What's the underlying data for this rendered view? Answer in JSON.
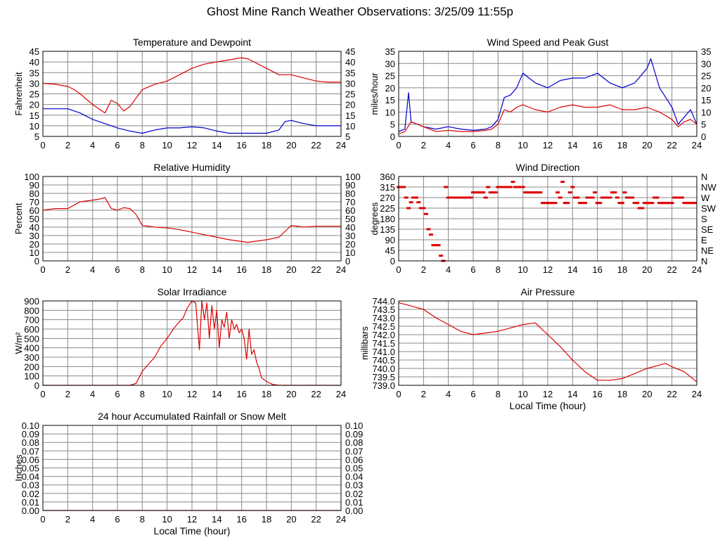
{
  "page_title": "Ghost Mine Ranch Weather Observations: 3/25/09 11:55p",
  "colors": {
    "red": "#dd0000",
    "blue": "#0000cc",
    "grid": "#888888",
    "frame": "#000000"
  },
  "chart_data": [
    {
      "id": "temp",
      "type": "line",
      "title": "Temperature and Dewpoint",
      "xlabel": "",
      "ylabel": "Fahrenheit",
      "xlim": [
        0,
        24
      ],
      "ylim": [
        5,
        45
      ],
      "xticks": [
        "0",
        "2",
        "4",
        "6",
        "8",
        "10",
        "12",
        "14",
        "16",
        "18",
        "20",
        "22",
        "24"
      ],
      "yticks": [
        "5",
        "10",
        "15",
        "20",
        "25",
        "30",
        "35",
        "40",
        "45"
      ],
      "right_ticks": [
        "5",
        "10",
        "15",
        "20",
        "25",
        "30",
        "35",
        "40",
        "45"
      ],
      "series": [
        {
          "color": "red",
          "x": [
            0,
            1,
            2,
            2.5,
            3,
            4,
            4.5,
            5,
            5.5,
            6,
            6.5,
            7,
            7.5,
            8,
            9,
            10,
            11,
            12,
            13,
            14,
            15,
            16,
            16.5,
            17,
            18,
            19,
            20,
            21,
            22,
            23,
            24
          ],
          "y": [
            30,
            29.5,
            28.5,
            27,
            25,
            20,
            18,
            16,
            22,
            20.5,
            17,
            19,
            23,
            27,
            29.5,
            31,
            34,
            37,
            39,
            40,
            41,
            42,
            41.5,
            40,
            37,
            34,
            34,
            32.5,
            31,
            30.5,
            30.5
          ]
        },
        {
          "color": "blue",
          "x": [
            0,
            1,
            2,
            3,
            4,
            5,
            6,
            7,
            8,
            9,
            10,
            11,
            12,
            13,
            14,
            15,
            16,
            17,
            18,
            19,
            19.5,
            20,
            21,
            22,
            23,
            24
          ],
          "y": [
            18,
            18,
            18,
            16,
            13,
            11,
            9,
            7.5,
            6.5,
            8,
            9,
            9,
            9.5,
            9,
            7.5,
            6.5,
            6.5,
            6.5,
            6.5,
            8,
            12,
            12.5,
            11,
            10,
            10,
            10
          ]
        }
      ]
    },
    {
      "id": "wind",
      "type": "line",
      "title": "Wind Speed and Peak Gust",
      "xlabel": "",
      "ylabel": "miles/hour",
      "xlim": [
        0,
        24
      ],
      "ylim": [
        0,
        35
      ],
      "xticks": [
        "0",
        "2",
        "4",
        "6",
        "8",
        "10",
        "12",
        "14",
        "16",
        "18",
        "20",
        "22",
        "24"
      ],
      "yticks": [
        "0",
        "5",
        "10",
        "15",
        "20",
        "25",
        "30",
        "35"
      ],
      "right_ticks": [
        "0",
        "5",
        "10",
        "15",
        "20",
        "25",
        "30",
        "35"
      ],
      "series": [
        {
          "color": "blue",
          "x": [
            0,
            0.5,
            0.8,
            1,
            1.5,
            2,
            3,
            4,
            5,
            6,
            7,
            7.5,
            8,
            8.5,
            9,
            9.5,
            10,
            11,
            12,
            13,
            14,
            15,
            16,
            17,
            18,
            19,
            20,
            20.3,
            21,
            22,
            22.5,
            23,
            23.5,
            24
          ],
          "y": [
            2,
            3,
            18,
            6,
            5,
            4,
            3,
            4,
            3,
            2.5,
            3,
            4,
            7,
            16,
            17,
            20,
            26,
            22,
            20,
            23,
            24,
            24,
            26,
            22,
            20,
            22,
            28,
            32,
            20,
            12,
            5,
            8,
            11,
            5
          ]
        },
        {
          "color": "red",
          "x": [
            0,
            0.5,
            1,
            1.5,
            2,
            3,
            4,
            5,
            6,
            7,
            7.5,
            8,
            8.5,
            9,
            9.5,
            10,
            11,
            12,
            13,
            14,
            15,
            16,
            17,
            18,
            19,
            20,
            20.5,
            21,
            22,
            22.5,
            23,
            23.5,
            24
          ],
          "y": [
            1,
            2,
            6,
            5,
            4,
            2,
            2.5,
            2,
            2,
            2.5,
            3,
            5,
            11,
            10,
            12,
            13,
            11,
            10,
            12,
            13,
            12,
            12,
            13,
            11,
            11,
            12,
            11,
            10,
            7,
            4,
            6,
            7,
            5
          ]
        }
      ]
    },
    {
      "id": "humidity",
      "type": "line",
      "title": "Relative Humidity",
      "xlabel": "",
      "ylabel": "Percent",
      "xlim": [
        0,
        24
      ],
      "ylim": [
        0,
        100
      ],
      "xticks": [
        "0",
        "2",
        "4",
        "6",
        "8",
        "10",
        "12",
        "14",
        "16",
        "18",
        "20",
        "22",
        "24"
      ],
      "yticks": [
        "0",
        "10",
        "20",
        "30",
        "40",
        "50",
        "60",
        "70",
        "80",
        "90",
        "100"
      ],
      "right_ticks": [
        "0",
        "10",
        "20",
        "30",
        "40",
        "50",
        "60",
        "70",
        "80",
        "90",
        "100"
      ],
      "series": [
        {
          "color": "red",
          "x": [
            0,
            1,
            2,
            2.5,
            3,
            4,
            4.5,
            5,
            5.5,
            6,
            6.5,
            7,
            7.5,
            8,
            9,
            10,
            11,
            12,
            13,
            14,
            15,
            16,
            16.5,
            17,
            18,
            19,
            19.5,
            20,
            21,
            22,
            23,
            24
          ],
          "y": [
            60,
            62,
            62,
            66,
            70,
            72,
            73,
            75,
            62,
            60,
            63,
            62,
            55,
            42,
            40,
            39,
            37,
            34,
            31,
            28,
            25,
            23,
            22,
            23,
            25,
            28,
            35,
            42,
            40,
            41,
            41,
            41
          ]
        }
      ]
    },
    {
      "id": "winddir",
      "type": "scatter",
      "title": "Wind Direction",
      "xlabel": "",
      "ylabel": "degrees",
      "xlim": [
        0,
        24
      ],
      "ylim": [
        0,
        360
      ],
      "xticks": [
        "0",
        "2",
        "4",
        "6",
        "8",
        "10",
        "12",
        "14",
        "16",
        "18",
        "20",
        "22",
        "24"
      ],
      "yticks": [
        "0",
        "45",
        "90",
        "135",
        "180",
        "225",
        "270",
        "315",
        "360"
      ],
      "right_ticks": [
        "N",
        "NE",
        "E",
        "SE",
        "S",
        "SW",
        "W",
        "NW",
        "N"
      ],
      "series": [
        {
          "color": "red",
          "x": [
            0,
            0.2,
            0.4,
            0.6,
            0.8,
            1,
            1.2,
            1.4,
            1.6,
            1.8,
            2,
            2.2,
            2.4,
            2.6,
            2.8,
            3,
            3.2,
            3.4,
            3.6,
            3.8,
            4,
            4.2,
            4.4,
            4.6,
            4.8,
            5,
            5.2,
            5.4,
            5.6,
            5.8,
            6,
            6.2,
            6.4,
            6.6,
            6.8,
            7,
            7.2,
            7.4,
            7.6,
            7.8,
            8,
            8.2,
            8.4,
            8.6,
            8.8,
            9,
            9.2,
            9.4,
            9.6,
            9.8,
            10,
            10.2,
            10.4,
            10.6,
            10.8,
            11,
            11.2,
            11.4,
            11.6,
            11.8,
            12,
            12.2,
            12.4,
            12.6,
            12.8,
            13,
            13.2,
            13.4,
            13.6,
            13.8,
            14,
            14.2,
            14.4,
            14.6,
            14.8,
            15,
            15.2,
            15.4,
            15.6,
            15.8,
            16,
            16.2,
            16.4,
            16.6,
            16.8,
            17,
            17.2,
            17.4,
            17.6,
            17.8,
            18,
            18.2,
            18.4,
            18.6,
            18.8,
            19,
            19.2,
            19.4,
            19.6,
            19.8,
            20,
            20.2,
            20.4,
            20.6,
            20.8,
            21,
            21.2,
            21.4,
            21.6,
            21.8,
            22,
            22.2,
            22.4,
            22.6,
            22.8,
            23,
            23.2,
            23.4,
            23.6,
            23.8
          ],
          "y": [
            315,
            315,
            315,
            270,
            225,
            250,
            270,
            270,
            250,
            225,
            225,
            200,
            135,
            112,
            67,
            67,
            67,
            22,
            0,
            315,
            270,
            270,
            270,
            270,
            270,
            270,
            270,
            270,
            270,
            270,
            292,
            292,
            292,
            292,
            292,
            270,
            315,
            292,
            292,
            292,
            315,
            315,
            315,
            315,
            315,
            315,
            337,
            315,
            315,
            315,
            315,
            292,
            292,
            292,
            292,
            292,
            292,
            292,
            247,
            247,
            247,
            247,
            247,
            247,
            292,
            270,
            337,
            247,
            247,
            292,
            315,
            270,
            270,
            247,
            247,
            247,
            270,
            270,
            270,
            292,
            247,
            247,
            270,
            270,
            270,
            270,
            292,
            292,
            270,
            247,
            247,
            292,
            270,
            270,
            270,
            247,
            247,
            225,
            225,
            247,
            247,
            247,
            247,
            270,
            270,
            247,
            247,
            247,
            247,
            247,
            247,
            270,
            270,
            270,
            270,
            247,
            247,
            247,
            247,
            247
          ]
        }
      ]
    },
    {
      "id": "solar",
      "type": "line",
      "title": "Solar Irradiance",
      "xlabel": "",
      "ylabel": "W/m²",
      "xlim": [
        0,
        24
      ],
      "ylim": [
        0,
        900
      ],
      "xticks": [
        "0",
        "2",
        "4",
        "6",
        "8",
        "10",
        "12",
        "14",
        "16",
        "18",
        "20",
        "22",
        "24"
      ],
      "yticks": [
        "0",
        "100",
        "200",
        "300",
        "400",
        "500",
        "600",
        "700",
        "800",
        "900"
      ],
      "right_ticks": [],
      "series": [
        {
          "color": "red",
          "x": [
            0,
            7,
            7.5,
            8,
            9,
            9.5,
            10,
            10.5,
            11,
            11.3,
            11.6,
            12,
            12.3,
            12.6,
            12.8,
            13,
            13.2,
            13.4,
            13.6,
            13.8,
            14,
            14.2,
            14.4,
            14.6,
            14.8,
            15,
            15.2,
            15.4,
            15.6,
            15.8,
            16,
            16.2,
            16.4,
            16.6,
            16.8,
            17,
            17.2,
            17.4,
            17.6,
            18,
            18.5,
            19,
            19.5,
            20,
            24
          ],
          "y": [
            0,
            0,
            20,
            150,
            300,
            420,
            500,
            600,
            680,
            720,
            820,
            900,
            880,
            380,
            900,
            700,
            880,
            500,
            850,
            600,
            800,
            400,
            700,
            620,
            780,
            500,
            700,
            600,
            650,
            560,
            600,
            500,
            280,
            600,
            330,
            380,
            250,
            180,
            80,
            40,
            10,
            0,
            0,
            0,
            0
          ]
        }
      ]
    },
    {
      "id": "pressure",
      "type": "line",
      "title": "Air Pressure",
      "xlabel": "Local Time (hour)",
      "ylabel": "millibars",
      "xlim": [
        0,
        24
      ],
      "ylim": [
        739.0,
        744.0
      ],
      "xticks": [
        "0",
        "2",
        "4",
        "6",
        "8",
        "10",
        "12",
        "14",
        "16",
        "18",
        "20",
        "22",
        "24"
      ],
      "yticks": [
        "739.0",
        "739.5",
        "740.0",
        "740.5",
        "741.0",
        "741.5",
        "742.0",
        "742.5",
        "743.0",
        "743.5",
        "744.0"
      ],
      "right_ticks": [],
      "series": [
        {
          "color": "red",
          "x": [
            0,
            1,
            2,
            3,
            4,
            5,
            6,
            7,
            8,
            9,
            10,
            11,
            12,
            13,
            14,
            15,
            16,
            17,
            18,
            19,
            20,
            21,
            21.5,
            22,
            23,
            24
          ],
          "y": [
            743.9,
            743.7,
            743.5,
            743.0,
            742.6,
            742.2,
            742.0,
            742.1,
            742.2,
            742.4,
            742.6,
            742.7,
            742.0,
            741.3,
            740.5,
            739.8,
            739.3,
            739.3,
            739.4,
            739.7,
            740.0,
            740.2,
            740.3,
            740.1,
            739.8,
            739.2
          ]
        }
      ]
    },
    {
      "id": "rain",
      "type": "line",
      "title": "24 hour Accumulated Rainfall or Snow Melt",
      "xlabel": "Local Time (hour)",
      "ylabel": "Inches",
      "xlim": [
        0,
        24
      ],
      "ylim": [
        0,
        0.1
      ],
      "xticks": [
        "0",
        "2",
        "4",
        "6",
        "8",
        "10",
        "12",
        "14",
        "16",
        "18",
        "20",
        "22",
        "24"
      ],
      "yticks": [
        "0.00",
        "0.01",
        "0.02",
        "0.03",
        "0.04",
        "0.05",
        "0.06",
        "0.07",
        "0.08",
        "0.09",
        "0.10"
      ],
      "right_ticks": [
        "0.00",
        "0.01",
        "0.02",
        "0.03",
        "0.04",
        "0.05",
        "0.06",
        "0.07",
        "0.08",
        "0.09",
        "0.10"
      ],
      "series": [
        {
          "color": "red",
          "x": [
            0,
            24
          ],
          "y": [
            0,
            0
          ]
        }
      ]
    }
  ]
}
